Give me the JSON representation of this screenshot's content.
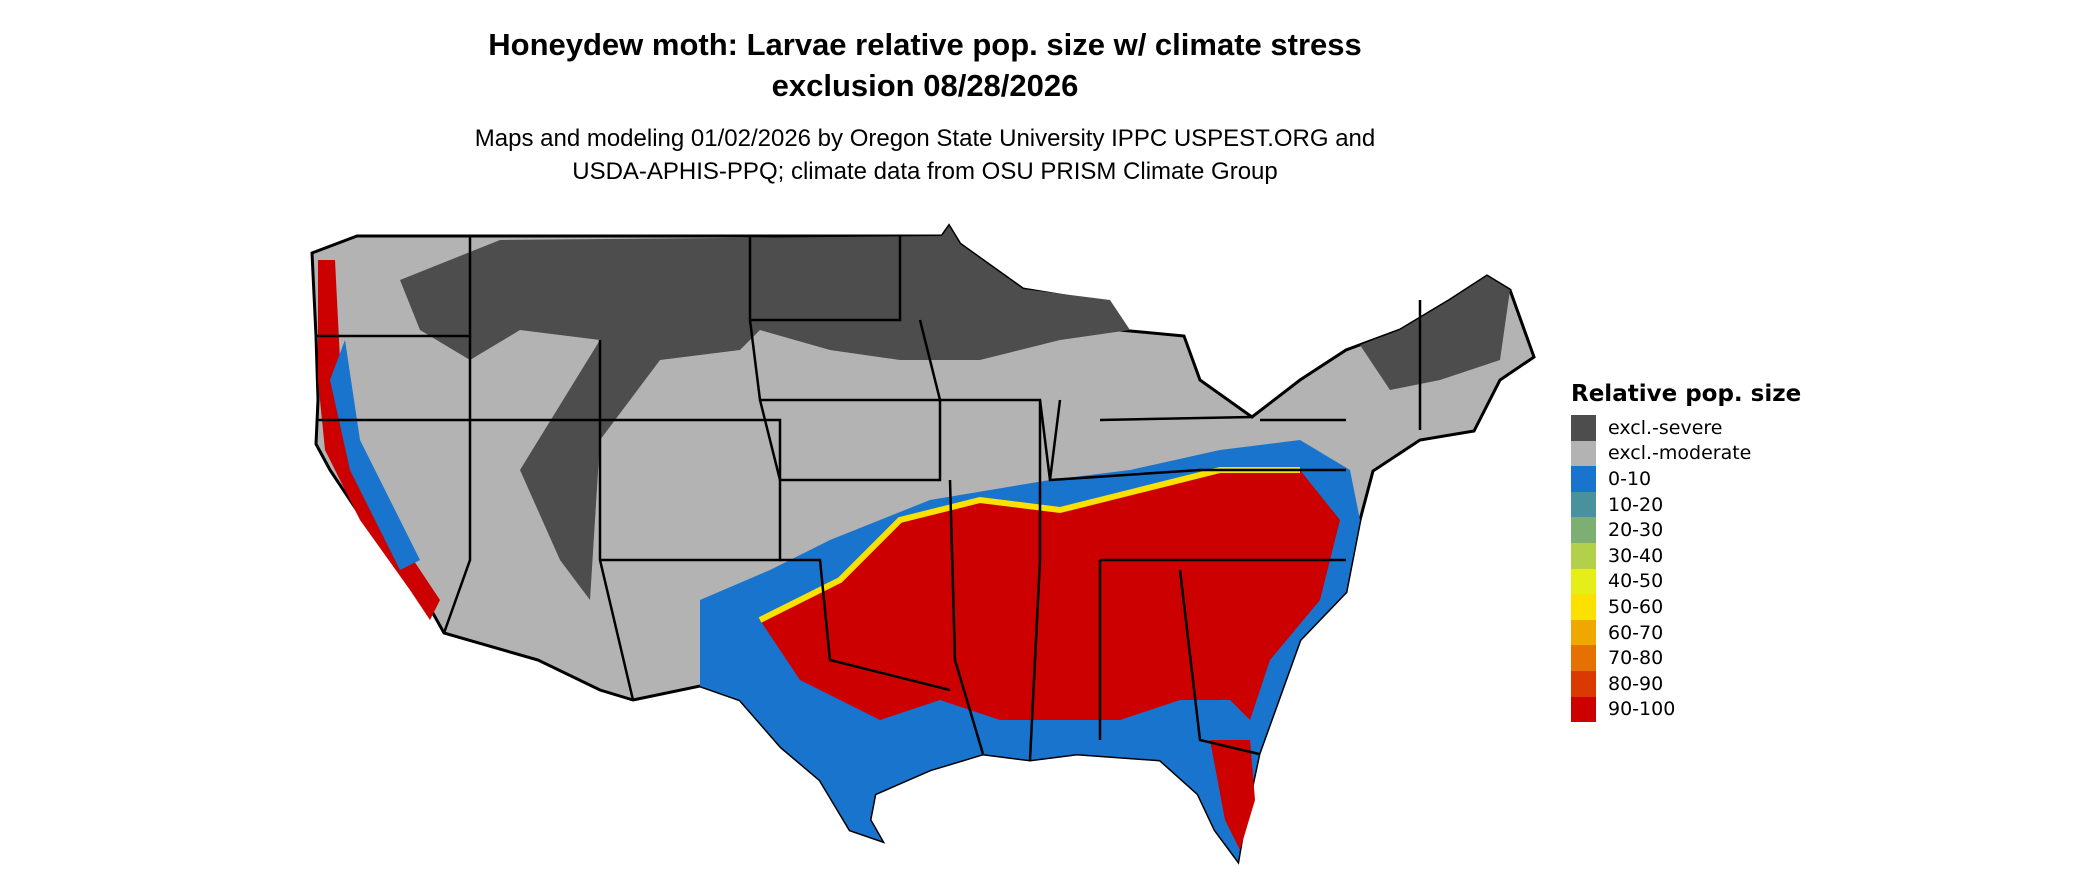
{
  "title_line1": "Honeydew moth: Larvae relative pop. size w/ climate stress",
  "title_line2": "exclusion 08/28/2026",
  "subtitle_line1": "Maps and modeling 01/02/2026 by Oregon State University IPPC USPEST.ORG and",
  "subtitle_line2": "USDA-APHIS-PPQ; climate data from OSU PRISM Climate Group",
  "legend": {
    "title": "Relative pop. size",
    "items": [
      {
        "label": "excl.-severe",
        "color": "#4d4d4d"
      },
      {
        "label": "excl.-moderate",
        "color": "#b3b3b3"
      },
      {
        "label": "0-10",
        "color": "#1874cd"
      },
      {
        "label": "10-20",
        "color": "#4a919e"
      },
      {
        "label": "20-30",
        "color": "#7daf72"
      },
      {
        "label": "30-40",
        "color": "#b2d04a"
      },
      {
        "label": "40-50",
        "color": "#e5ee17"
      },
      {
        "label": "50-60",
        "color": "#fbe100"
      },
      {
        "label": "60-70",
        "color": "#f0a800"
      },
      {
        "label": "70-80",
        "color": "#e57200"
      },
      {
        "label": "80-90",
        "color": "#da3a00"
      },
      {
        "label": "90-100",
        "color": "#cd0000"
      }
    ]
  }
}
